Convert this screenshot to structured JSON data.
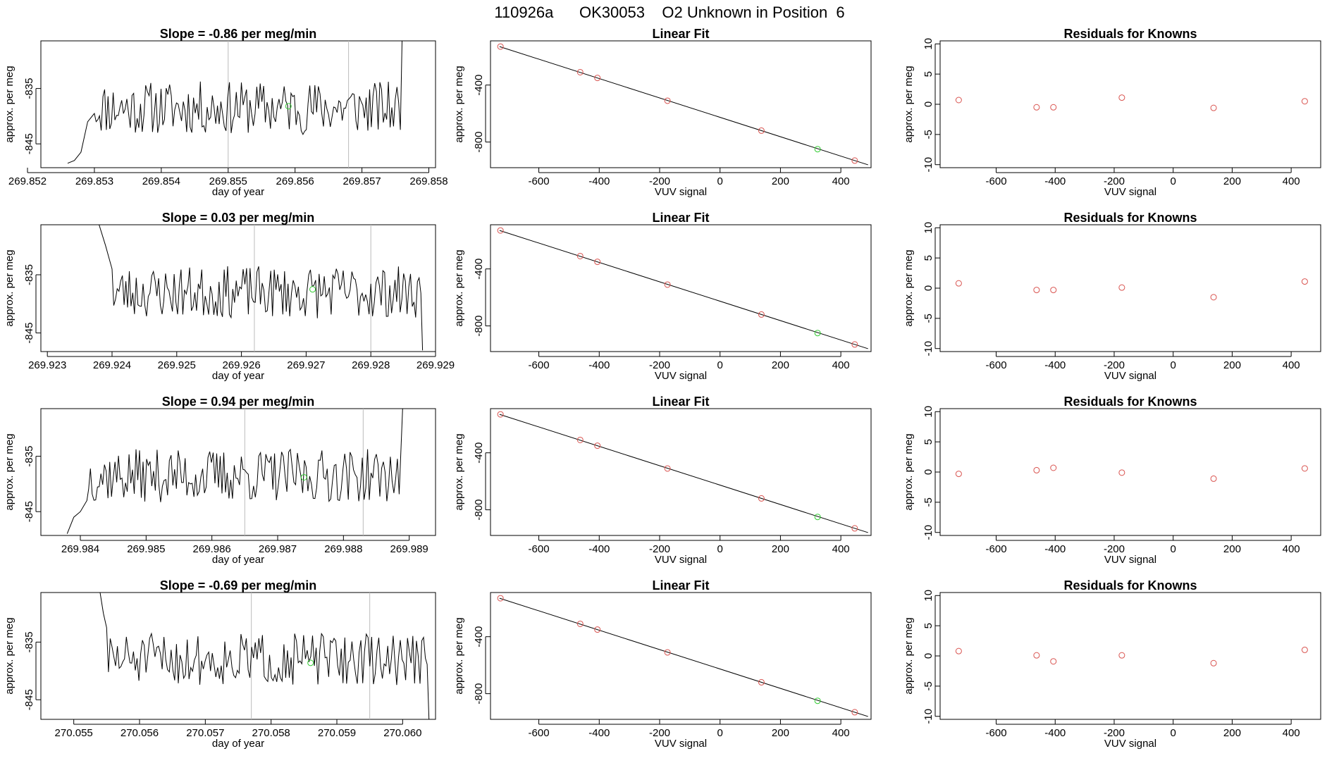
{
  "page_title": "110926a      OK30053    O2 Unknown in Position  6",
  "colors": {
    "known": "#d9534f",
    "unknown": "#33cc33",
    "line": "#000000",
    "vline": "#bbbbbb",
    "axis": "#000000"
  },
  "chart_data": [
    {
      "type": "line",
      "title": "Slope =  -0.86  per meg/min",
      "xlabel": "day of year",
      "ylabel": "approx. per meg",
      "xlim": [
        269.8522,
        269.8581
      ],
      "ylim": [
        -849.3,
        -826.4
      ],
      "xticks": [
        "269.852",
        "269.853",
        "269.854",
        "269.855",
        "269.856",
        "269.857",
        "269.858"
      ],
      "yticks": [
        "-835",
        "-845"
      ],
      "vlines": [
        269.855,
        269.8568
      ],
      "start": 269.8526,
      "end": 269.8576,
      "start_y": -848,
      "end_y": -826.4,
      "lead": [
        [
          269.8526,
          -848.5
        ],
        [
          269.8527,
          -848
        ],
        [
          269.8528,
          -846.5
        ],
        [
          269.8529,
          -841
        ],
        [
          269.853,
          -839.5
        ]
      ],
      "base": -838.5,
      "amp": 3,
      "seed": 11,
      "unknown_point": {
        "x": 269.8559,
        "y": -838.2
      }
    },
    {
      "type": "scatter",
      "title": "Linear Fit",
      "xlabel": "VUV signal",
      "ylabel": "approx. per meg",
      "xlim": [
        -760,
        500
      ],
      "ylim": [
        -980,
        -90
      ],
      "xticks": [
        "-600",
        "-400",
        "-200",
        "0",
        "200",
        "400"
      ],
      "yticks": [
        "-400",
        "-800"
      ],
      "fit_line": [
        [
          -730,
          -130
        ],
        [
          490,
          -960
        ]
      ],
      "known_points": [
        [
          -727,
          -130
        ],
        [
          -463,
          -310
        ],
        [
          -406,
          -350
        ],
        [
          -174,
          -510
        ],
        [
          137,
          -720
        ],
        [
          446,
          -930
        ]
      ],
      "unknown_point": [
        323,
        -850
      ]
    },
    {
      "type": "scatter",
      "title": "Residuals for Knowns",
      "xlabel": "VUV signal",
      "ylabel": "approx. per meg",
      "xlim": [
        -790,
        500
      ],
      "ylim": [
        -10.5,
        10.5
      ],
      "xticks": [
        "-600",
        "-400",
        "-200",
        "0",
        "200",
        "400"
      ],
      "yticks": [
        "10",
        "5",
        "0",
        "-5",
        "-10"
      ],
      "points": [
        [
          -727,
          0.7
        ],
        [
          -463,
          -0.5
        ],
        [
          -406,
          -0.5
        ],
        [
          -174,
          1.1
        ],
        [
          137,
          -0.6
        ],
        [
          446,
          0.5
        ]
      ]
    },
    {
      "type": "line",
      "title": "Slope =  0.03  per meg/min",
      "xlabel": "day of year",
      "ylabel": "approx. per meg",
      "xlim": [
        269.9229,
        269.929
      ],
      "ylim": [
        -848.2,
        -826.4
      ],
      "xticks": [
        "269.923",
        "269.924",
        "269.925",
        "269.926",
        "269.927",
        "269.928",
        "269.929"
      ],
      "yticks": [
        "-835",
        "-845"
      ],
      "vlines": [
        269.9262,
        269.928
      ],
      "start": 269.9238,
      "end": 269.9288,
      "start_y": -826.4,
      "end_y": -848,
      "lead": [
        [
          269.9238,
          -826.4
        ],
        [
          269.9239,
          -830
        ],
        [
          269.924,
          -834
        ]
      ],
      "base": -838,
      "amp": 2.8,
      "seed": 23,
      "unknown_point": {
        "x": 269.9271,
        "y": -837.5
      }
    },
    {
      "type": "scatter",
      "title": "Linear Fit",
      "xlabel": "VUV signal",
      "ylabel": "approx. per meg",
      "xlim": [
        -760,
        500
      ],
      "ylim": [
        -980,
        -90
      ],
      "xticks": [
        "-600",
        "-400",
        "-200",
        "0",
        "200",
        "400"
      ],
      "yticks": [
        "-400",
        "-800"
      ],
      "fit_line": [
        [
          -730,
          -130
        ],
        [
          490,
          -960
        ]
      ],
      "known_points": [
        [
          -727,
          -130
        ],
        [
          -463,
          -310
        ],
        [
          -406,
          -350
        ],
        [
          -174,
          -510
        ],
        [
          137,
          -720
        ],
        [
          446,
          -930
        ]
      ],
      "unknown_point": [
        323,
        -850
      ]
    },
    {
      "type": "scatter",
      "title": "Residuals for Knowns",
      "xlabel": "VUV signal",
      "ylabel": "approx. per meg",
      "xlim": [
        -790,
        500
      ],
      "ylim": [
        -10.5,
        10.5
      ],
      "xticks": [
        "-600",
        "-400",
        "-200",
        "0",
        "200",
        "400"
      ],
      "yticks": [
        "10",
        "5",
        "0",
        "-5",
        "-10"
      ],
      "points": [
        [
          -727,
          0.8
        ],
        [
          -463,
          -0.3
        ],
        [
          -406,
          -0.3
        ],
        [
          -174,
          0.1
        ],
        [
          137,
          -1.5
        ],
        [
          446,
          1.1
        ]
      ]
    },
    {
      "type": "line",
      "title": "Slope =  0.94  per meg/min",
      "xlabel": "day of year",
      "ylabel": "approx. per meg",
      "xlim": [
        269.9834,
        269.9894
      ],
      "ylim": [
        -849.3,
        -826.4
      ],
      "xticks": [
        "269.984",
        "269.985",
        "269.986",
        "269.987",
        "269.988",
        "269.989"
      ],
      "yticks": [
        "-835",
        "-845"
      ],
      "vlines": [
        269.9865,
        269.9883
      ],
      "start": 269.9838,
      "end": 269.9889,
      "start_y": -849,
      "end_y": -826.4,
      "lead": [
        [
          269.9838,
          -849
        ],
        [
          269.9839,
          -846
        ],
        [
          269.984,
          -845
        ],
        [
          269.9841,
          -843
        ]
      ],
      "base": -838.5,
      "amp": 3,
      "seed": 37,
      "unknown_point": {
        "x": 269.9874,
        "y": -838.8
      }
    },
    {
      "type": "scatter",
      "title": "Linear Fit",
      "xlabel": "VUV signal",
      "ylabel": "approx. per meg",
      "xlim": [
        -760,
        500
      ],
      "ylim": [
        -980,
        -90
      ],
      "xticks": [
        "-600",
        "-400",
        "-200",
        "0",
        "200",
        "400"
      ],
      "yticks": [
        "-400",
        "-800"
      ],
      "fit_line": [
        [
          -730,
          -130
        ],
        [
          490,
          -960
        ]
      ],
      "known_points": [
        [
          -727,
          -130
        ],
        [
          -463,
          -310
        ],
        [
          -406,
          -350
        ],
        [
          -174,
          -510
        ],
        [
          137,
          -720
        ],
        [
          446,
          -930
        ]
      ],
      "unknown_point": [
        323,
        -850
      ]
    },
    {
      "type": "scatter",
      "title": "Residuals for Knowns",
      "xlabel": "VUV signal",
      "ylabel": "approx. per meg",
      "xlim": [
        -790,
        500
      ],
      "ylim": [
        -10.5,
        10.5
      ],
      "xticks": [
        "-600",
        "-400",
        "-200",
        "0",
        "200",
        "400"
      ],
      "yticks": [
        "10",
        "5",
        "0",
        "-5",
        "-10"
      ],
      "points": [
        [
          -727,
          -0.3
        ],
        [
          -463,
          0.3
        ],
        [
          -406,
          0.7
        ],
        [
          -174,
          -0.1
        ],
        [
          137,
          -1.1
        ],
        [
          446,
          0.6
        ]
      ]
    },
    {
      "type": "line",
      "title": "Slope =  -0.69  per meg/min",
      "xlabel": "day of year",
      "ylabel": "approx. per meg",
      "xlim": [
        270.0545,
        270.0605
      ],
      "ylim": [
        -848.4,
        -826.4
      ],
      "xticks": [
        "270.055",
        "270.056",
        "270.057",
        "270.058",
        "270.059",
        "270.060"
      ],
      "yticks": [
        "-835",
        "-845"
      ],
      "vlines": [
        270.0577,
        270.0595
      ],
      "start": 270.0554,
      "end": 270.0604,
      "start_y": -826.4,
      "end_y": -848.4,
      "lead": [
        [
          270.0554,
          -826.4
        ],
        [
          270.05545,
          -830
        ],
        [
          270.0555,
          -832.5
        ]
      ],
      "base": -838,
      "amp": 2.8,
      "seed": 51,
      "unknown_point": {
        "x": 270.0586,
        "y": -838.6
      }
    },
    {
      "type": "scatter",
      "title": "Linear Fit",
      "xlabel": "VUV signal",
      "ylabel": "approx. per meg",
      "xlim": [
        -760,
        500
      ],
      "ylim": [
        -980,
        -90
      ],
      "xticks": [
        "-600",
        "-400",
        "-200",
        "0",
        "200",
        "400"
      ],
      "yticks": [
        "-400",
        "-800"
      ],
      "fit_line": [
        [
          -730,
          -130
        ],
        [
          490,
          -960
        ]
      ],
      "known_points": [
        [
          -727,
          -130
        ],
        [
          -463,
          -310
        ],
        [
          -406,
          -350
        ],
        [
          -174,
          -510
        ],
        [
          137,
          -720
        ],
        [
          446,
          -930
        ]
      ],
      "unknown_point": [
        323,
        -850
      ]
    },
    {
      "type": "scatter",
      "title": "Residuals for Knowns",
      "xlabel": "VUV signal",
      "ylabel": "approx. per meg",
      "xlim": [
        -790,
        500
      ],
      "ylim": [
        -10.5,
        10.5
      ],
      "xticks": [
        "-600",
        "-400",
        "-200",
        "0",
        "200",
        "400"
      ],
      "yticks": [
        "10",
        "5",
        "0",
        "-5",
        "-10"
      ],
      "points": [
        [
          -727,
          0.8
        ],
        [
          -463,
          0.1
        ],
        [
          -406,
          -0.9
        ],
        [
          -174,
          0.1
        ],
        [
          137,
          -1.2
        ],
        [
          446,
          1.0
        ]
      ]
    }
  ]
}
